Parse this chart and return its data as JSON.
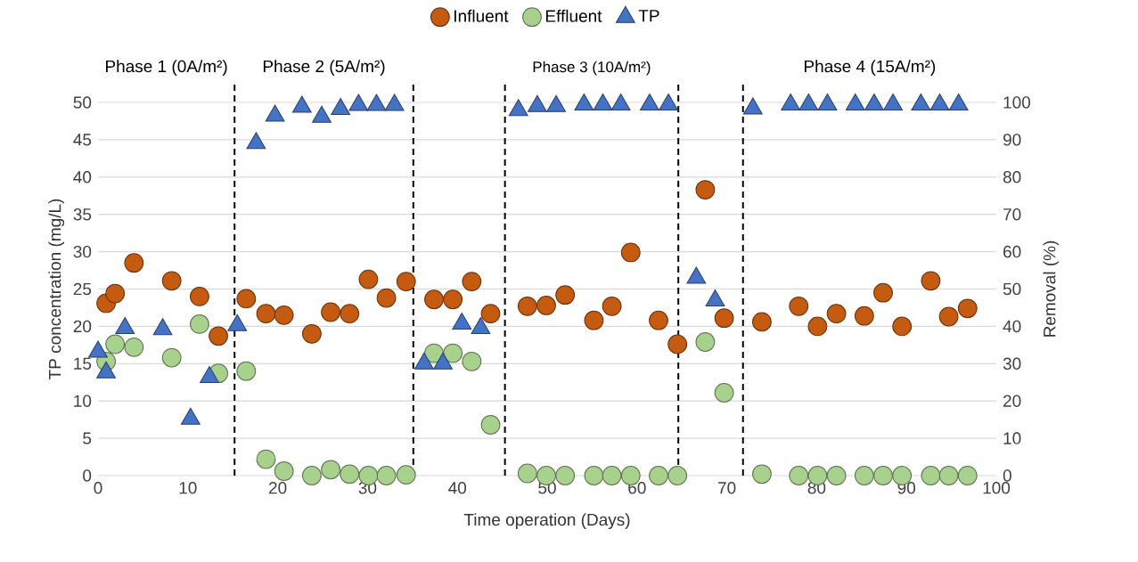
{
  "chart_data": {
    "type": "scatter",
    "xlabel": "Time operation (Days)",
    "ylabel": "TP concentration (mg/L)",
    "y2label": "Removal (%)",
    "xlim": [
      0,
      100
    ],
    "xticks": [
      0,
      10,
      20,
      30,
      40,
      50,
      60,
      70,
      80,
      90,
      100
    ],
    "ylim": [
      0,
      50
    ],
    "yticks": [
      0,
      5,
      10,
      15,
      20,
      25,
      30,
      35,
      40,
      45,
      50
    ],
    "y2lim": [
      0,
      100
    ],
    "y2ticks": [
      0,
      10,
      20,
      30,
      40,
      50,
      60,
      70,
      80,
      90,
      100
    ],
    "grid": "y",
    "legend": "top",
    "series": [
      {
        "name": "Influent",
        "color": "#c55a11",
        "marker": "circle",
        "x": [
          0.9,
          1.9,
          4.0,
          8.2,
          11.3,
          13.4,
          16.5,
          18.7,
          20.7,
          23.8,
          25.9,
          28.0,
          30.1,
          32.1,
          34.3,
          37.4,
          39.5,
          41.6,
          43.7,
          47.8,
          49.9,
          52.0,
          55.2,
          57.2,
          59.3,
          62.4,
          64.5,
          67.6,
          69.7,
          73.9,
          78.0,
          80.1,
          82.2,
          85.3,
          87.4,
          89.5,
          92.7,
          94.7,
          96.8
        ],
        "values": [
          23.1,
          24.4,
          28.5,
          26.1,
          24.0,
          18.7,
          23.7,
          21.7,
          21.5,
          19.0,
          21.9,
          21.7,
          26.3,
          23.8,
          26.0,
          23.6,
          23.6,
          26.0,
          21.7,
          22.7,
          22.8,
          24.2,
          20.8,
          22.7,
          29.9,
          20.8,
          17.6,
          38.3,
          21.1,
          20.6,
          22.7,
          20.0,
          21.7,
          21.4,
          24.5,
          20.0,
          26.1,
          21.3,
          22.4
        ]
      },
      {
        "name": "Effluent",
        "color": "#a9d18e",
        "marker": "circle",
        "x": [
          0.9,
          1.9,
          4.0,
          8.2,
          11.3,
          13.4,
          16.5,
          18.7,
          20.7,
          23.8,
          25.9,
          28.0,
          30.1,
          32.1,
          34.3,
          37.4,
          39.5,
          41.6,
          43.7,
          47.8,
          49.9,
          52.0,
          55.2,
          57.2,
          59.3,
          62.4,
          64.5,
          67.6,
          69.7,
          73.9,
          78.0,
          80.1,
          82.2,
          85.3,
          87.4,
          89.5,
          92.7,
          94.7,
          96.8
        ],
        "values": [
          15.3,
          17.6,
          17.2,
          15.8,
          20.3,
          13.7,
          14.0,
          2.2,
          0.6,
          0.0,
          0.8,
          0.2,
          0.0,
          0.0,
          0.1,
          16.4,
          16.4,
          15.3,
          6.8,
          0.3,
          0.0,
          0.0,
          0.0,
          0.0,
          0.0,
          0.0,
          0.0,
          17.9,
          11.1,
          0.2,
          0.0,
          0.0,
          0.0,
          0.0,
          0.0,
          0.0,
          0.0,
          0.0,
          0.0
        ]
      },
      {
        "name": "TP",
        "color": "#4472c4",
        "marker": "triangle",
        "axis": "y2",
        "x": [
          0.0,
          0.9,
          3.0,
          7.2,
          10.3,
          12.4,
          15.5,
          17.6,
          19.7,
          22.7,
          24.9,
          27.0,
          29.0,
          31.0,
          33.0,
          36.3,
          38.4,
          40.5,
          42.6,
          46.8,
          48.9,
          51.0,
          54.1,
          56.2,
          58.2,
          61.4,
          63.5,
          66.6,
          68.7,
          72.9,
          77.1,
          79.1,
          81.2,
          84.3,
          86.4,
          88.5,
          91.6,
          93.7,
          95.8
        ],
        "values": [
          33.2,
          27.6,
          39.5,
          39.2,
          15.2,
          26.4,
          40.3,
          89.1,
          96.4,
          98.8,
          96.1,
          98.2,
          99.3,
          99.3,
          99.3,
          30.0,
          30.0,
          40.7,
          39.5,
          97.9,
          99.0,
          99.0,
          99.4,
          99.4,
          99.4,
          99.4,
          99.4,
          53.0,
          46.9,
          98.3,
          99.4,
          99.4,
          99.4,
          99.4,
          99.4,
          99.4,
          99.4,
          99.4,
          99.4
        ]
      }
    ],
    "ref_lines": [
      {
        "axis": "x",
        "value": 15.2,
        "color": "#000000",
        "line_style": "dashed"
      },
      {
        "axis": "x",
        "value": 35.1,
        "color": "#000000",
        "line_style": "dashed"
      },
      {
        "axis": "x",
        "value": 45.3,
        "color": "#000000",
        "line_style": "dashed"
      },
      {
        "axis": "x",
        "value": 64.6,
        "color": "#000000",
        "line_style": "dashed"
      },
      {
        "axis": "x",
        "value": 71.8,
        "color": "#000000",
        "line_style": "dashed"
      }
    ],
    "annotations": [
      "Phase 1 (0A/m²)",
      "Phase 2 (5A/m²)",
      "Phase 3 (10A/m²)",
      "Phase 4 (15A/m²)"
    ]
  }
}
